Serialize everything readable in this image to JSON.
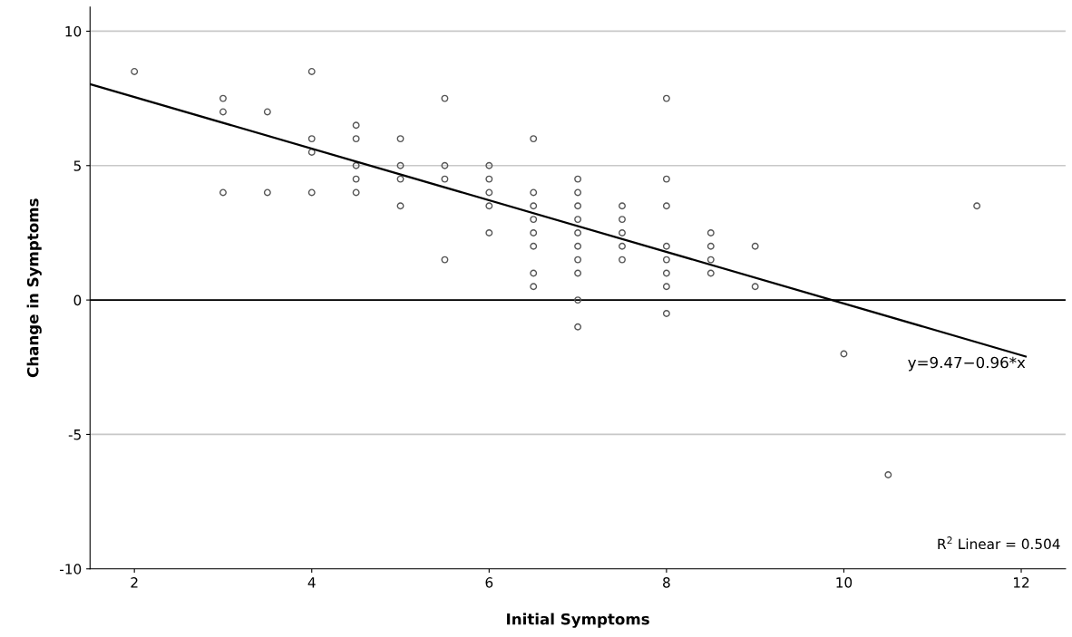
{
  "chart_data": {
    "type": "scatter",
    "xlabel": "Initial Symptoms",
    "ylabel": "Change in Symptoms",
    "xlim": [
      1.5,
      12.5
    ],
    "ylim": [
      -10,
      10.9
    ],
    "xticks": [
      2,
      4,
      6,
      8,
      10,
      12
    ],
    "yticks": [
      -10,
      -5,
      0,
      5,
      10
    ],
    "grid": "y",
    "series": [
      {
        "color": "#555555",
        "marker": "circle",
        "x": [
          2,
          3,
          3,
          3,
          3.5,
          3.5,
          4,
          4,
          4,
          4,
          4.5,
          4.5,
          4.5,
          4.5,
          4.5,
          5,
          5,
          5,
          5,
          5.5,
          5.5,
          5.5,
          5.5,
          6,
          6,
          6,
          6,
          6,
          6.5,
          6.5,
          6.5,
          6.5,
          6.5,
          6.5,
          6.5,
          6.5,
          7,
          7,
          7,
          7,
          7,
          7,
          7,
          7,
          7,
          7,
          7.5,
          7.5,
          7.5,
          7.5,
          7.5,
          8,
          8,
          8,
          8,
          8,
          8,
          8,
          8,
          8.5,
          8.5,
          8.5,
          8.5,
          9,
          9,
          10,
          10.5,
          11.5
        ],
        "values": [
          8.5,
          7.5,
          7,
          4,
          7,
          4,
          8.5,
          6,
          5.5,
          4,
          6.5,
          6,
          5,
          4.5,
          4,
          6,
          5,
          4.5,
          3.5,
          7.5,
          5,
          4.5,
          1.5,
          5,
          4.5,
          4,
          3.5,
          2.5,
          6,
          4,
          3.5,
          3,
          2.5,
          2,
          1,
          0.5,
          4.5,
          4,
          3.5,
          3,
          2.5,
          2,
          1.5,
          1,
          0,
          -1,
          3.5,
          3,
          2.5,
          2,
          1.5,
          7.5,
          4.5,
          3.5,
          2,
          1.5,
          1,
          0.5,
          -0.5,
          2.5,
          2,
          1.5,
          1,
          2,
          0.5,
          -2,
          -6.5,
          3.5
        ]
      },
      {
        "type": "line",
        "color": "#000000",
        "marker": "none",
        "x": [
          1.5,
          12.05
        ],
        "values": [
          8.03,
          -2.1
        ]
      }
    ],
    "ref_lines": [
      {
        "axis": "y",
        "value": 0,
        "color": "#000000"
      }
    ],
    "annotations": [
      {
        "text": "y=9.47−0.96*x",
        "x": 12.05,
        "y": -2.1
      },
      "R$^{2}$ Linear = 0.504"
    ]
  }
}
